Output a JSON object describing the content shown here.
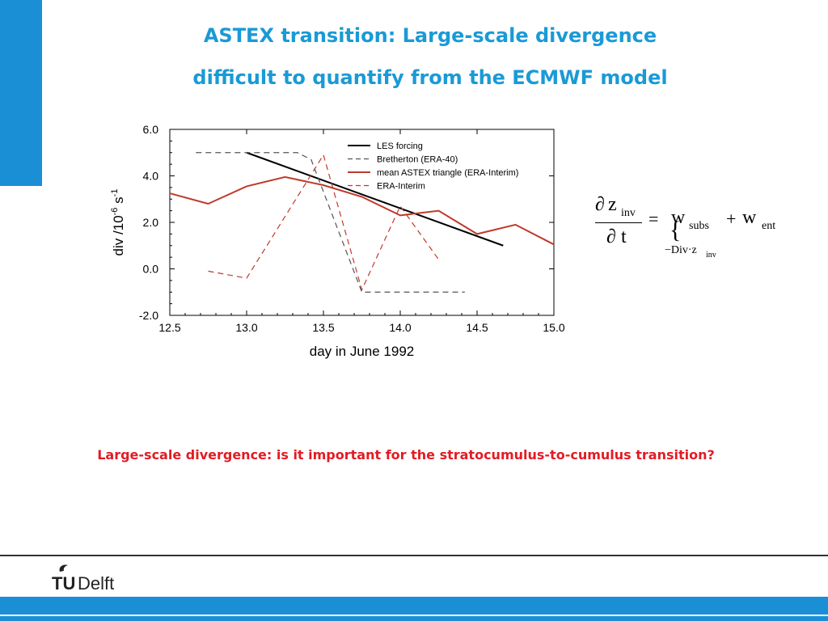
{
  "slide": {
    "title_line1": "ASTEX transition: Large-scale divergence",
    "title_line2": "difficult to quantify from the ECMWF model",
    "question": "Large-scale divergence: is it important for the stratocumulus-to-cumulus transition?",
    "logo_text": "TUDelft",
    "accent_color": "#1a8fd6",
    "title_color": "#1a9ad6",
    "question_color": "#e31b23"
  },
  "equation": {
    "partial": "∂",
    "z": "z",
    "inv": "inv",
    "t": "t",
    "equals": "=",
    "w": "w",
    "subs": "subs",
    "plus": "+",
    "ent": "ent",
    "brace": "{",
    "div_expr": "−Div·z",
    "div_sub": "inv"
  },
  "chart_data": {
    "type": "line",
    "xlabel": "day in June 1992",
    "ylabel_base": "div /10",
    "ylabel_exp1": "-6",
    "ylabel_unit": " s",
    "ylabel_exp2": "-1",
    "xlim": [
      12.5,
      15.0
    ],
    "ylim": [
      -2.0,
      6.0
    ],
    "xticks": [
      "12.5",
      "13.0",
      "13.5",
      "14.0",
      "14.5",
      "15.0"
    ],
    "yticks": [
      "-2.0",
      "0.0",
      "2.0",
      "4.0",
      "6.0"
    ],
    "legend_position": "top-right",
    "series": [
      {
        "name": "LES forcing",
        "color": "#000000",
        "dash": "solid",
        "x": [
          13.0,
          14.67
        ],
        "y": [
          5.0,
          1.0
        ]
      },
      {
        "name": "Bretherton (ERA-40)",
        "color": "#555555",
        "dash": "dashed",
        "x": [
          12.67,
          13.0,
          13.33,
          13.42,
          13.75,
          14.42
        ],
        "y": [
          5.0,
          5.0,
          5.0,
          4.7,
          -1.0,
          -1.0
        ]
      },
      {
        "name": "mean ASTEX triangle (ERA-Interim)",
        "color": "#c0392b",
        "dash": "solid",
        "x": [
          12.5,
          12.75,
          13.0,
          13.25,
          13.5,
          13.75,
          14.0,
          14.25,
          14.5,
          14.75,
          15.0
        ],
        "y": [
          3.25,
          2.8,
          3.55,
          3.95,
          3.6,
          3.1,
          2.3,
          2.5,
          1.5,
          1.9,
          1.05
        ]
      },
      {
        "name": "ERA-Interim",
        "color": "#c0392b",
        "dash": "dashed",
        "x": [
          12.75,
          13.0,
          13.5,
          13.75,
          14.0,
          14.25
        ],
        "y": [
          -0.1,
          -0.4,
          4.9,
          -0.9,
          2.7,
          0.4
        ]
      }
    ]
  }
}
